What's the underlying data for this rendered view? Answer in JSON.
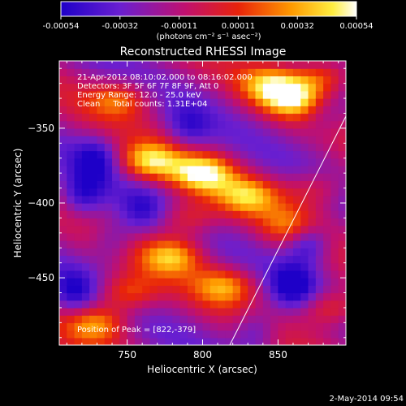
{
  "chart_data": {
    "type": "heatmap",
    "title": "Reconstructed RHESSI Image",
    "xlabel": "Heliocentric X (arcsec)",
    "ylabel": "Heliocentric Y (arcsec)",
    "xlim": [
      705,
      895
    ],
    "ylim": [
      -495,
      -305
    ],
    "x_ticks": [
      750,
      800,
      850
    ],
    "y_ticks": [
      -350,
      -400,
      -450
    ],
    "colorbar": {
      "ticks": [
        "-0.00054",
        "-0.00032",
        "-0.00011",
        "0.00011",
        "0.00032",
        "0.00054"
      ],
      "unit_label": "(photons cm⁻² s⁻¹ asec⁻²)",
      "vmin": -0.00054,
      "vmax": 0.00054,
      "colormap": "rainbow/white blue-purple-red-orange-yellow-white"
    },
    "annotations": [
      "21-Apr-2012 08:10:02.000 to 08:16:02.000",
      "Detectors: 3F 5F 6F 7F 8F 9F, Att 0",
      "Energy Range: 12.0 - 25.0 keV",
      "Clean     Total counts: 1.31E+04"
    ],
    "position_of_peak": "Position of Peak = [822,-379]",
    "limb_line": {
      "x": [
        818,
        895
      ],
      "y": [
        -495,
        -342
      ]
    },
    "image_extent": {
      "x": [
        705,
        895
      ],
      "y": [
        -495,
        -305
      ]
    },
    "peak_blobs": [
      {
        "x": 800,
        "y": -380,
        "strength": 1.0
      },
      {
        "x": 765,
        "y": -372,
        "strength": 0.9
      },
      {
        "x": 830,
        "y": -395,
        "strength": 0.75
      },
      {
        "x": 860,
        "y": -330,
        "strength": 0.85
      },
      {
        "x": 845,
        "y": -320,
        "strength": 0.7
      },
      {
        "x": 880,
        "y": -315,
        "strength": 0.65
      },
      {
        "x": 745,
        "y": -330,
        "strength": 0.6
      },
      {
        "x": 780,
        "y": -435,
        "strength": 0.8
      },
      {
        "x": 750,
        "y": -460,
        "strength": 0.65
      },
      {
        "x": 815,
        "y": -455,
        "strength": 0.7
      },
      {
        "x": 860,
        "y": -415,
        "strength": 0.55
      },
      {
        "x": 730,
        "y": -480,
        "strength": 0.75
      },
      {
        "x": 885,
        "y": -470,
        "strength": 0.6
      },
      {
        "x": 790,
        "y": -410,
        "strength": 0.55
      },
      {
        "x": 875,
        "y": -390,
        "strength": 0.45
      }
    ],
    "trough_blobs": [
      {
        "x": 870,
        "y": -425,
        "strength": 1.0
      },
      {
        "x": 860,
        "y": -455,
        "strength": 0.8
      },
      {
        "x": 730,
        "y": -370,
        "strength": 0.7
      },
      {
        "x": 720,
        "y": -395,
        "strength": 0.75
      },
      {
        "x": 715,
        "y": -460,
        "strength": 0.65
      },
      {
        "x": 790,
        "y": -350,
        "strength": 0.55
      },
      {
        "x": 760,
        "y": -405,
        "strength": 0.5
      },
      {
        "x": 880,
        "y": -340,
        "strength": 0.45
      },
      {
        "x": 835,
        "y": -485,
        "strength": 0.6
      },
      {
        "x": 740,
        "y": -425,
        "strength": 0.5
      }
    ]
  },
  "footer": {
    "timestamp": "2-May-2014 09:54"
  }
}
